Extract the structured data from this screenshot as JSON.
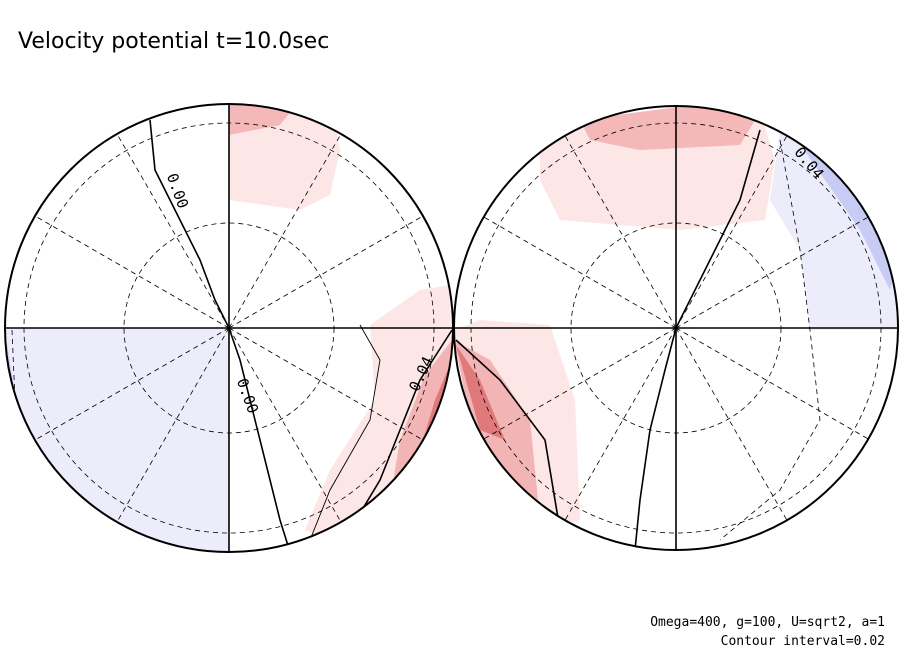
{
  "title": "Velocity potential t=10.0sec",
  "contour_labels": [
    "0.00",
    "0.00",
    "0.04",
    "0.04"
  ],
  "footer": {
    "parameters": "Omega=400, g=100, U=sqrt2, a=1",
    "contour_interval": "Contour interval=0.02"
  }
}
